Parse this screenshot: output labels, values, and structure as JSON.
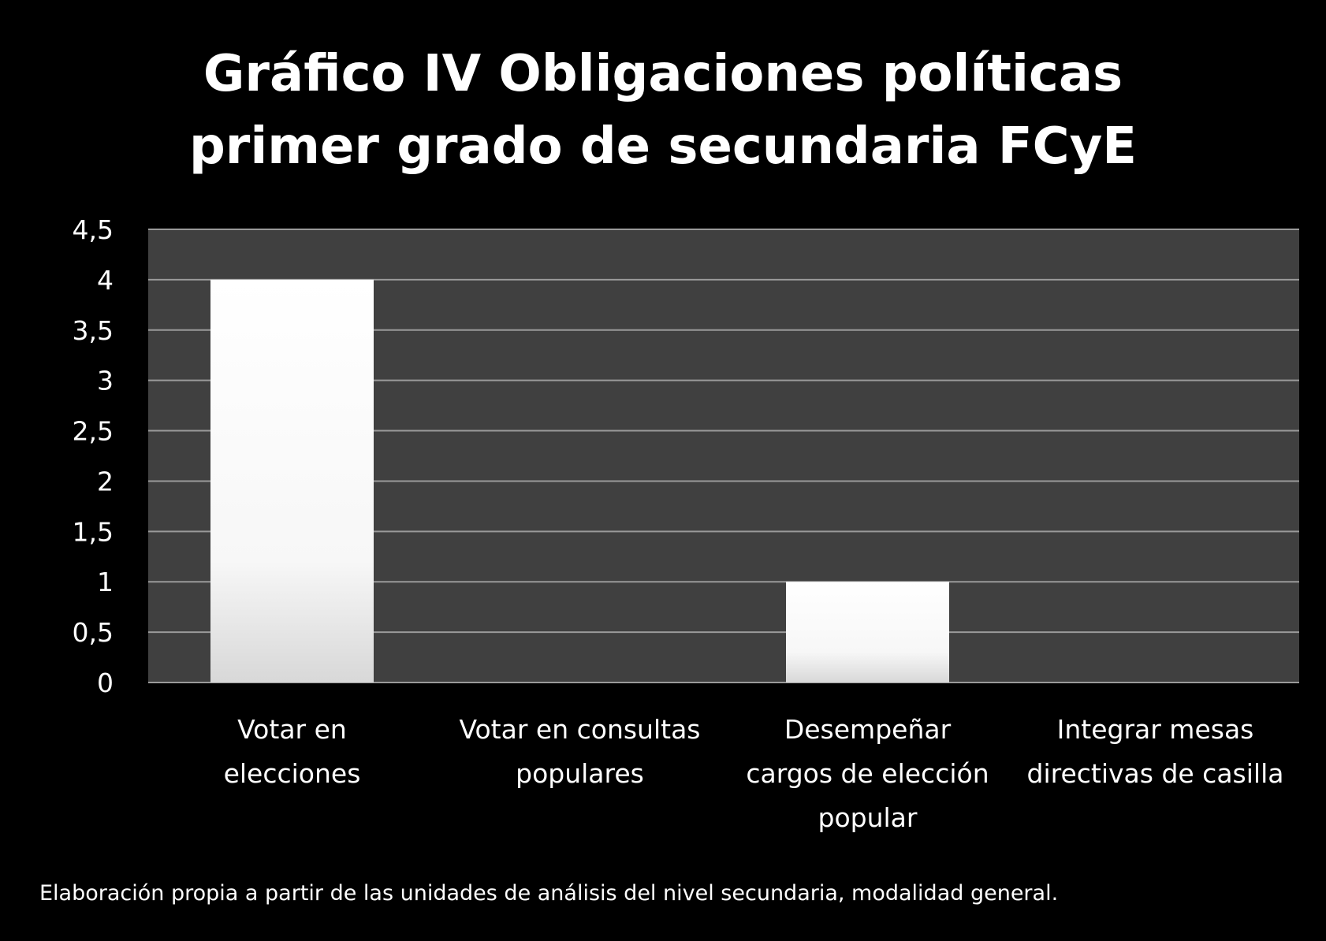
{
  "chart_data": {
    "type": "bar",
    "title_lines": [
      "Gráfico IV Obligaciones políticas",
      "primer grado de secundaria FCyE"
    ],
    "categories": [
      [
        "Votar en",
        "elecciones"
      ],
      [
        "Votar en consultas",
        "populares"
      ],
      [
        "Desempeñar",
        "cargos de elección",
        "popular"
      ],
      [
        "Integrar mesas",
        "directivas de casilla"
      ]
    ],
    "values": [
      4,
      0,
      1,
      0
    ],
    "ylim": [
      0,
      4.5
    ],
    "ytick_values": [
      0,
      0.5,
      1,
      1.5,
      2,
      2.5,
      3,
      3.5,
      4,
      4.5
    ],
    "ytick_labels": [
      "0",
      "0,5",
      "1",
      "1,5",
      "2",
      "2,5",
      "3",
      "3,5",
      "4",
      "4,5"
    ],
    "grid": true,
    "legend": "none",
    "colors": {
      "background": "#000000",
      "plot_area": "#404040",
      "gridline": "#9a9a9a",
      "bar": "#ffffff",
      "bar_shade": "#dcdcdc",
      "text": "#ffffff"
    }
  },
  "footnote": "Elaboración propia a partir de las unidades de análisis del nivel secundaria, modalidad general."
}
